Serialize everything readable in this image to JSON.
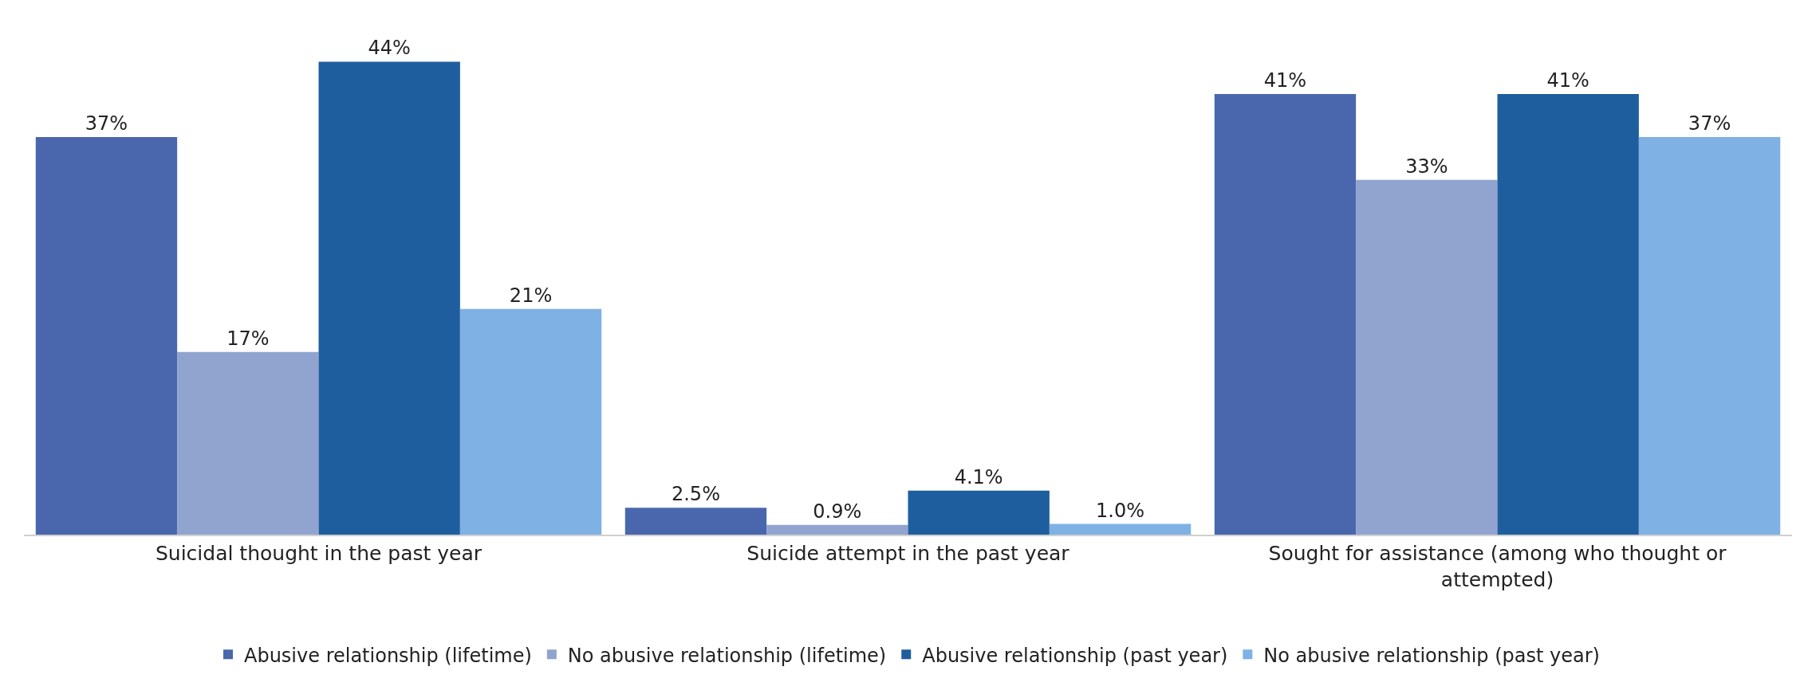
{
  "chart_data": {
    "type": "bar",
    "categories": [
      "Suicidal thought in the past year",
      "Suicide attempt in the past year",
      "Sought for assistance (among who thought or attempted)"
    ],
    "series": [
      {
        "name": "Abusive relationship (lifetime)",
        "color": "#4a67ae",
        "values": [
          37,
          2.5,
          41
        ],
        "value_labels": [
          "37%",
          "2.5%",
          "41%"
        ]
      },
      {
        "name": "No abusive relationship (lifetime)",
        "color": "#91a3cf",
        "values": [
          17,
          0.9,
          33
        ],
        "value_labels": [
          "17%",
          "0.9%",
          "33%"
        ]
      },
      {
        "name": "Abusive relationship (past year)",
        "color": "#1f5e9e",
        "values": [
          44,
          4.1,
          41
        ],
        "value_labels": [
          "44%",
          "4.1%",
          "41%"
        ]
      },
      {
        "name": "No abusive relationship (past year)",
        "color": "#7fb1e4",
        "values": [
          21,
          1.0,
          37
        ],
        "value_labels": [
          "21%",
          "1.0%",
          "37%"
        ]
      }
    ],
    "legend": "bottom",
    "grid": false,
    "tick_labels": "x"
  }
}
